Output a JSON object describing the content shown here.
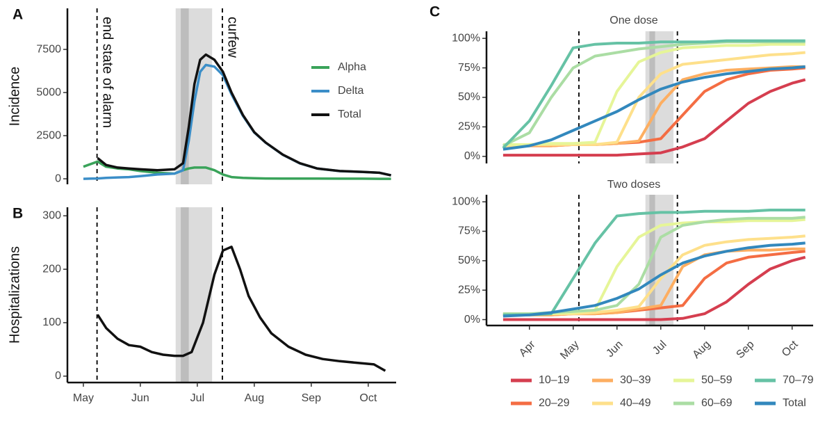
{
  "chart_data": [
    {
      "type": "line",
      "panel_label": "A",
      "y_label": "Incidence",
      "legend": "right",
      "x": [
        5.0,
        5.25,
        5.4,
        5.6,
        5.8,
        6.0,
        6.3,
        6.6,
        6.75,
        6.85,
        6.95,
        7.05,
        7.15,
        7.3,
        7.45,
        7.6,
        7.8,
        8.0,
        8.2,
        8.5,
        8.8,
        9.1,
        9.5,
        9.9,
        10.2,
        10.4
      ],
      "xlim": [
        4.72,
        10.49
      ],
      "ylim": [
        -320,
        9880
      ],
      "yticks": [
        0,
        2500,
        5000,
        7500
      ],
      "shade": [
        6.62,
        7.26
      ],
      "shade_dark": [
        6.71,
        6.85
      ],
      "annotations": [
        {
          "text": "end state of alarm",
          "x": 5.24
        },
        {
          "text": "curfew",
          "x": 7.44
        }
      ],
      "series": [
        {
          "name": "Alpha",
          "color": "#3aa35a",
          "values": [
            700,
            1000,
            700,
            600,
            550,
            450,
            350,
            300,
            500,
            600,
            650,
            650,
            650,
            500,
            250,
            100,
            50,
            30,
            20,
            15,
            10,
            10,
            5,
            5,
            0,
            0
          ]
        },
        {
          "name": "Delta",
          "color": "#3b8ec8",
          "values": [
            0,
            20,
            50,
            80,
            100,
            150,
            250,
            300,
            500,
            2200,
            4500,
            6200,
            6600,
            6500,
            6000,
            4900,
            3650,
            2680,
            2090,
            1390,
            895,
            598,
            448,
            398,
            348,
            200
          ]
        },
        {
          "name": "Total",
          "color": "#111111",
          "values": [
            null,
            1200,
            800,
            650,
            600,
            550,
            500,
            550,
            900,
            3000,
            5500,
            6900,
            7200,
            6900,
            6200,
            5000,
            3700,
            2700,
            2100,
            1400,
            900,
            600,
            450,
            400,
            350,
            200
          ]
        }
      ]
    },
    {
      "type": "line",
      "panel_label": "B",
      "y_label": "Hospitalizations",
      "x": [
        5.25,
        5.4,
        5.6,
        5.8,
        6.0,
        6.2,
        6.4,
        6.6,
        6.75,
        6.9,
        7.1,
        7.3,
        7.45,
        7.6,
        7.75,
        7.9,
        8.1,
        8.3,
        8.6,
        8.9,
        9.2,
        9.5,
        9.8,
        10.1,
        10.3
      ],
      "xlim": [
        4.72,
        10.49
      ],
      "ylim": [
        -12,
        316
      ],
      "yticks": [
        0,
        100,
        200,
        300
      ],
      "xticks": [
        {
          "value": 5,
          "label": "May"
        },
        {
          "value": 6,
          "label": "Jun"
        },
        {
          "value": 7,
          "label": "Jul"
        },
        {
          "value": 8,
          "label": "Aug"
        },
        {
          "value": 9,
          "label": "Sep"
        },
        {
          "value": 10,
          "label": "Oct"
        }
      ],
      "shade": [
        6.62,
        7.26
      ],
      "shade_dark": [
        6.71,
        6.85
      ],
      "vlines": [
        5.24,
        7.44
      ],
      "series": [
        {
          "color": "#111111",
          "values": [
            115,
            90,
            70,
            58,
            55,
            45,
            40,
            38,
            38,
            45,
            100,
            190,
            235,
            242,
            200,
            150,
            110,
            80,
            55,
            40,
            32,
            28,
            25,
            22,
            10
          ]
        }
      ]
    },
    {
      "type": "line",
      "panel_label": "C",
      "title": "One dose",
      "x": [
        3.4,
        4,
        4.5,
        5,
        5.5,
        6,
        6.5,
        7,
        7.5,
        8,
        8.5,
        9,
        9.5,
        10,
        10.3
      ],
      "xlim": [
        3.02,
        10.48
      ],
      "ylim": [
        -6,
        106
      ],
      "yticks": [
        {
          "value": 0,
          "label": "0%"
        },
        {
          "value": 25,
          "label": "25%"
        },
        {
          "value": 50,
          "label": "50%"
        },
        {
          "value": 75,
          "label": "75%"
        },
        {
          "value": 100,
          "label": "100%"
        }
      ],
      "shade": [
        6.65,
        7.29
      ],
      "shade_dark": [
        6.74,
        6.87
      ],
      "vlines": [
        5.13,
        7.38
      ],
      "series": [
        {
          "name": "10–19",
          "color": "#d53e4f",
          "values": [
            1,
            1,
            1,
            1,
            1,
            1,
            2,
            3,
            8,
            15,
            30,
            45,
            55,
            62,
            65
          ]
        },
        {
          "name": "20–29",
          "color": "#f46d43",
          "values": [
            9,
            9,
            9,
            10,
            10,
            11,
            12,
            15,
            35,
            55,
            65,
            70,
            73,
            74,
            75
          ]
        },
        {
          "name": "30–39",
          "color": "#fdae61",
          "values": [
            9,
            9,
            9,
            10,
            10,
            11,
            13,
            45,
            65,
            70,
            73,
            74,
            75,
            76,
            76
          ]
        },
        {
          "name": "40–49",
          "color": "#fee08b",
          "values": [
            9,
            10,
            10,
            10,
            10,
            12,
            50,
            70,
            78,
            80,
            82,
            84,
            86,
            87,
            88
          ]
        },
        {
          "name": "50–59",
          "color": "#e6f598",
          "values": [
            10,
            10,
            11,
            11,
            12,
            55,
            80,
            88,
            92,
            93,
            94,
            94,
            95,
            95,
            95
          ]
        },
        {
          "name": "60–69",
          "color": "#abdda4",
          "values": [
            9,
            20,
            50,
            75,
            85,
            88,
            91,
            93,
            95,
            96,
            97,
            97,
            97,
            97,
            97
          ]
        },
        {
          "name": "70–79",
          "color": "#66c2a5",
          "values": [
            7,
            30,
            60,
            92,
            95,
            96,
            96,
            97,
            97,
            97,
            98,
            98,
            98,
            98,
            98
          ]
        },
        {
          "name": "Total",
          "color": "#3288bd",
          "values": [
            6,
            9,
            14,
            22,
            30,
            38,
            48,
            57,
            63,
            67,
            70,
            72,
            74,
            75,
            76
          ]
        }
      ]
    },
    {
      "type": "line",
      "title": "Two doses",
      "x": [
        3.4,
        4,
        4.5,
        5,
        5.5,
        6,
        6.5,
        7,
        7.5,
        8,
        8.5,
        9,
        9.5,
        10,
        10.3
      ],
      "xlim": [
        3.02,
        10.48
      ],
      "ylim": [
        -5,
        106
      ],
      "yticks": [
        {
          "value": 0,
          "label": "0%"
        },
        {
          "value": 25,
          "label": "25%"
        },
        {
          "value": 50,
          "label": "50%"
        },
        {
          "value": 75,
          "label": "75%"
        },
        {
          "value": 100,
          "label": "100%"
        }
      ],
      "xticks": [
        {
          "value": 4,
          "label": "Apr"
        },
        {
          "value": 5,
          "label": "May"
        },
        {
          "value": 6,
          "label": "Jun"
        },
        {
          "value": 7,
          "label": "Jul"
        },
        {
          "value": 8,
          "label": "Aug"
        },
        {
          "value": 9,
          "label": "Sep"
        },
        {
          "value": 10,
          "label": "Oct"
        }
      ],
      "shade": [
        6.65,
        7.29
      ],
      "shade_dark": [
        6.74,
        6.87
      ],
      "vlines": [
        5.13,
        7.38
      ],
      "series": [
        {
          "color": "#d53e4f",
          "values": [
            0,
            0,
            0,
            0,
            0,
            0,
            0,
            0,
            1,
            5,
            15,
            30,
            43,
            50,
            53
          ]
        },
        {
          "color": "#f46d43",
          "values": [
            4,
            4,
            4,
            5,
            5,
            6,
            8,
            10,
            12,
            35,
            48,
            53,
            55,
            57,
            58
          ]
        },
        {
          "color": "#fdae61",
          "values": [
            4,
            4,
            4,
            5,
            5,
            6,
            9,
            12,
            45,
            55,
            58,
            59,
            59,
            60,
            60
          ]
        },
        {
          "color": "#fee08b",
          "values": [
            5,
            5,
            5,
            5,
            6,
            8,
            11,
            35,
            55,
            63,
            66,
            68,
            69,
            70,
            71
          ]
        },
        {
          "color": "#e6f598",
          "values": [
            5,
            5,
            5,
            6,
            8,
            45,
            70,
            80,
            82,
            83,
            83,
            84,
            84,
            84,
            85
          ]
        },
        {
          "color": "#abdda4",
          "values": [
            5,
            5,
            6,
            7,
            8,
            12,
            30,
            70,
            80,
            83,
            85,
            86,
            86,
            86,
            87
          ]
        },
        {
          "color": "#66c2a5",
          "values": [
            4,
            4,
            5,
            35,
            65,
            88,
            90,
            91,
            91,
            92,
            92,
            92,
            93,
            93,
            93
          ]
        },
        {
          "color": "#3288bd",
          "values": [
            3,
            4,
            6,
            9,
            12,
            18,
            26,
            38,
            48,
            54,
            58,
            61,
            63,
            64,
            65
          ]
        }
      ]
    }
  ]
}
